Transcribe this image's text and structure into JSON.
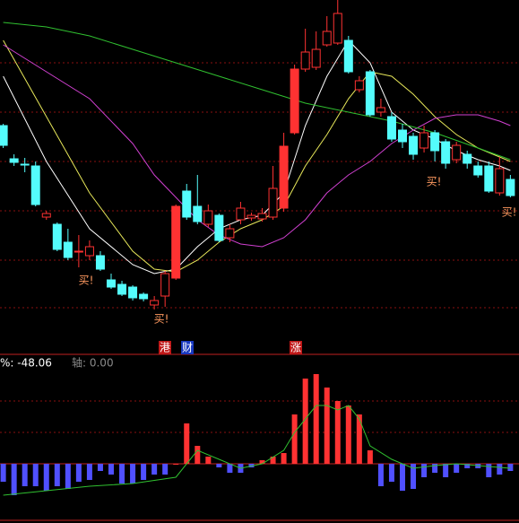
{
  "chart_data": [
    {
      "type": "candlestick",
      "x": [
        0,
        1,
        2,
        3,
        4,
        5,
        6,
        7,
        8,
        9,
        10,
        11,
        12,
        13,
        14,
        15,
        16,
        17,
        18,
        19,
        20,
        21,
        22,
        23,
        24,
        25,
        26,
        27,
        28,
        29,
        30,
        31,
        32,
        33,
        34,
        35,
        36,
        37,
        38,
        39,
        40,
        41,
        42,
        43,
        44,
        45,
        46,
        47
      ],
      "open": [
        260,
        223,
        217,
        215,
        158,
        150,
        130,
        120,
        115,
        115,
        88,
        83,
        80,
        72,
        60,
        70,
        90,
        187,
        170,
        150,
        160,
        135,
        155,
        157,
        156,
        158,
        168,
        252,
        323,
        325,
        350,
        352,
        355,
        300,
        320,
        275,
        270,
        255,
        248,
        235,
        252,
        242,
        222,
        228,
        215,
        215,
        185,
        200
      ],
      "close": [
        238,
        219,
        217,
        172,
        162,
        122,
        113,
        120,
        125,
        100,
        80,
        72,
        68,
        67,
        65,
        95,
        170,
        158,
        153,
        165,
        132,
        145,
        168,
        160,
        162,
        190,
        237,
        323,
        342,
        345,
        365,
        385,
        320,
        310,
        272,
        280,
        245,
        242,
        228,
        252,
        232,
        218,
        238,
        218,
        205,
        187,
        212,
        182
      ],
      "high": [
        262,
        228,
        224,
        220,
        165,
        152,
        145,
        138,
        132,
        120,
        95,
        87,
        82,
        74,
        70,
        98,
        172,
        195,
        205,
        172,
        162,
        150,
        175,
        163,
        168,
        215,
        252,
        328,
        368,
        365,
        382,
        400,
        360,
        315,
        322,
        290,
        275,
        262,
        252,
        260,
        255,
        245,
        242,
        232,
        220,
        220,
        225,
        205
      ],
      "low": [
        235,
        215,
        208,
        170,
        155,
        120,
        110,
        102,
        110,
        98,
        78,
        70,
        65,
        64,
        55,
        58,
        88,
        155,
        150,
        147,
        130,
        130,
        150,
        154,
        153,
        155,
        164,
        250,
        320,
        322,
        348,
        350,
        318,
        297,
        270,
        270,
        242,
        235,
        222,
        230,
        220,
        212,
        218,
        212,
        202,
        185,
        182,
        180
      ],
      "up_color": "#ff3232",
      "down_color": "#54fcfc",
      "xlim": [
        -0.3,
        47.8
      ],
      "ylim": [
        10,
        400
      ],
      "lines": [
        {
          "color": "#ffffff",
          "x": [
            0,
            4,
            8,
            12,
            14,
            16,
            18,
            20,
            22,
            24,
            26,
            28,
            30,
            32,
            34,
            36,
            38,
            40,
            42,
            44,
            46,
            47
          ],
          "values": [
            315,
            220,
            145,
            105,
            95,
            100,
            125,
            145,
            155,
            160,
            185,
            260,
            315,
            355,
            330,
            275,
            255,
            245,
            232,
            222,
            215,
            210
          ]
        },
        {
          "color": "#e8e85a",
          "x": [
            0,
            4,
            8,
            12,
            14,
            16,
            18,
            20,
            22,
            24,
            26,
            28,
            30,
            32,
            34,
            36,
            38,
            40,
            42,
            44,
            46,
            47
          ],
          "values": [
            355,
            270,
            185,
            120,
            100,
            97,
            110,
            130,
            145,
            155,
            170,
            215,
            250,
            290,
            320,
            315,
            295,
            270,
            250,
            235,
            225,
            220
          ]
        },
        {
          "color": "#d040d0",
          "x": [
            0,
            4,
            8,
            12,
            14,
            16,
            18,
            20,
            22,
            24,
            26,
            28,
            30,
            32,
            34,
            36,
            38,
            40,
            42,
            44,
            46,
            47
          ],
          "values": [
            350,
            320,
            290,
            240,
            205,
            180,
            155,
            138,
            128,
            125,
            135,
            155,
            185,
            205,
            220,
            240,
            255,
            268,
            272,
            272,
            265,
            260
          ]
        },
        {
          "color": "#30c030",
          "x": [
            0,
            4,
            8,
            12,
            16,
            20,
            24,
            28,
            32,
            36,
            40,
            44,
            47
          ],
          "values": [
            375,
            370,
            360,
            345,
            330,
            315,
            300,
            285,
            275,
            265,
            252,
            235,
            222
          ]
        }
      ],
      "annotations": [
        "买!",
        "买!",
        "买!",
        "买!"
      ],
      "tags": [
        "港",
        "财",
        "涨"
      ]
    },
    {
      "type": "histogram-bars",
      "x": [
        0,
        1,
        2,
        3,
        4,
        5,
        6,
        7,
        8,
        9,
        10,
        11,
        12,
        13,
        14,
        15,
        16,
        17,
        18,
        19,
        20,
        21,
        22,
        23,
        24,
        25,
        26,
        27,
        28,
        29,
        30,
        31,
        32,
        33,
        34,
        35,
        36,
        37,
        38,
        39,
        40,
        41,
        42,
        43,
        44,
        45,
        46,
        47
      ],
      "values": [
        -20,
        -35,
        -25,
        -25,
        -30,
        -25,
        -28,
        -20,
        -18,
        -8,
        -12,
        -22,
        -22,
        -18,
        -12,
        -12,
        0,
        45,
        20,
        8,
        -4,
        -10,
        -10,
        -4,
        4,
        8,
        12,
        55,
        95,
        100,
        85,
        70,
        65,
        55,
        15,
        -25,
        -20,
        -30,
        -28,
        -15,
        -10,
        -15,
        -10,
        -5,
        -5,
        -15,
        -12,
        -8
      ],
      "pos_color": "#ff3232",
      "neg_color": "#5050ff",
      "line": {
        "color": "#30c030",
        "x": [
          0,
          4,
          8,
          12,
          16,
          18,
          20,
          22,
          24,
          26,
          27,
          28,
          29,
          30,
          31,
          32,
          33,
          34,
          36,
          38,
          40,
          42,
          44,
          47
        ],
        "values": [
          -35,
          -30,
          -25,
          -22,
          -15,
          15,
          5,
          -5,
          0,
          15,
          35,
          50,
          65,
          65,
          60,
          65,
          50,
          20,
          5,
          -5,
          -2,
          0,
          -2,
          -5
        ]
      },
      "xlim": [
        -0.3,
        47.8
      ],
      "ylim": [
        -63,
        121
      ],
      "labels": [
        "%: -48.06",
        "轴: 0.00"
      ]
    }
  ]
}
